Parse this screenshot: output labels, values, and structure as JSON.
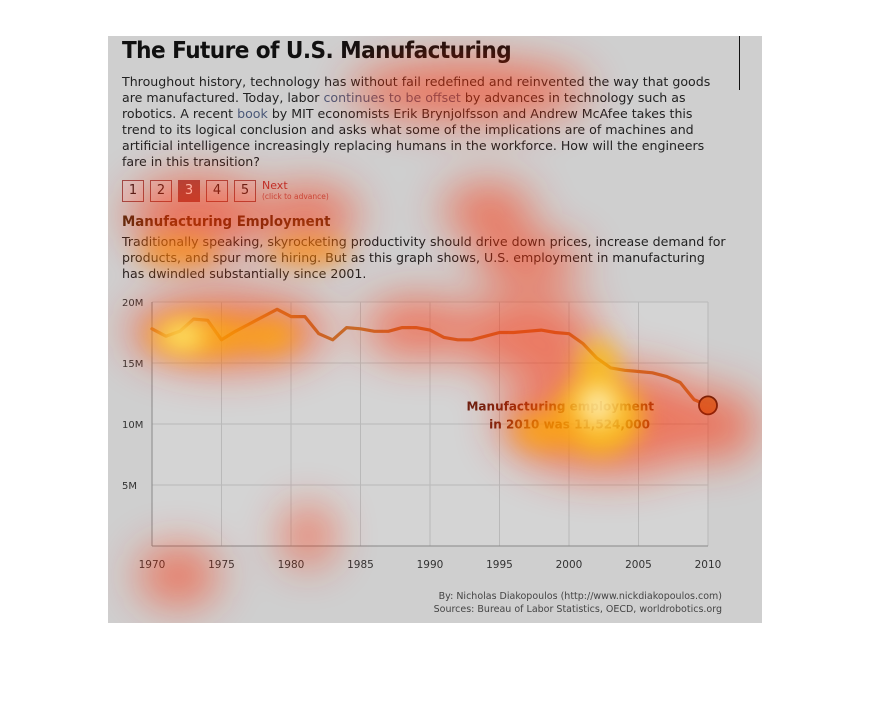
{
  "header": {
    "title": "The Future of U.S. Manufacturing"
  },
  "intro": {
    "part1": "Throughout history, technology has without fail redefined and reinvented the way that goods are manufactured. Today, labor ",
    "link1": "continues to be offset",
    "part2": " by advances in technology such as robotics. A recent ",
    "link2": "book",
    "part3": " by MIT economists Erik Brynjolfsson and Andrew McAfee takes this trend to its logical conclusion and asks what some of the implications are of machines and artificial intelligence increasingly replacing humans in the workforce. How will the engineers fare in this transition?"
  },
  "pager": {
    "pages": [
      "1",
      "2",
      "3",
      "4",
      "5"
    ],
    "active_index": 2,
    "next_label": "Next",
    "next_hint": "(click to advance)"
  },
  "section": {
    "title": "Manufacturing Employment",
    "description": "Traditionally speaking, skyrocketing productivity should drive down prices, increase demand for products, and spur more hiring. But as this graph shows, U.S. employment in manufacturing has dwindled substantially since 2001."
  },
  "chart_data": {
    "type": "line",
    "x": [
      1970,
      1971,
      1972,
      1973,
      1974,
      1975,
      1976,
      1977,
      1978,
      1979,
      1980,
      1981,
      1982,
      1983,
      1984,
      1985,
      1986,
      1987,
      1988,
      1989,
      1990,
      1991,
      1992,
      1993,
      1994,
      1995,
      1996,
      1997,
      1998,
      1999,
      2000,
      2001,
      2002,
      2003,
      2004,
      2005,
      2006,
      2007,
      2008,
      2009,
      2010
    ],
    "series": [
      {
        "values": [
          17.8,
          17.2,
          17.6,
          18.6,
          18.5,
          16.9,
          17.6,
          18.2,
          18.8,
          19.4,
          18.8,
          18.8,
          17.4,
          16.9,
          17.9,
          17.8,
          17.6,
          17.6,
          17.9,
          17.9,
          17.7,
          17.1,
          16.9,
          16.9,
          17.2,
          17.5,
          17.5,
          17.6,
          17.7,
          17.5,
          17.4,
          16.6,
          15.4,
          14.6,
          14.4,
          14.3,
          14.2,
          13.9,
          13.4,
          12.0,
          11.5
        ]
      }
    ],
    "xticks": [
      1970,
      1975,
      1980,
      1985,
      1990,
      1995,
      2000,
      2005,
      2010
    ],
    "xtick_labels": [
      "1970",
      "1975",
      "1980",
      "1985",
      "1990",
      "1995",
      "2000",
      "2005",
      "2010"
    ],
    "yticks": [
      5,
      10,
      15,
      20
    ],
    "ytick_labels": [
      "5M",
      "10M",
      "15M",
      "20M"
    ],
    "xlim": [
      1970,
      2010
    ],
    "ylim": [
      0,
      20
    ],
    "grid": true,
    "colors": {
      "line": "#c0732f",
      "marker_fill": "#c67a3d",
      "marker_stroke": "#3a1a0a",
      "annotation": "#6a2010"
    },
    "highlight": {
      "x": 2010,
      "y": 11.524
    },
    "annotation": {
      "line1": "Manufacturing employment",
      "line2": "in 2010 was 11,524,000"
    }
  },
  "credits": {
    "by": "By: Nicholas Diakopoulos (http://www.nickdiakopoulos.com)",
    "sources": "Sources: Bureau of Labor Statistics, OECD, worldrobotics.org"
  }
}
